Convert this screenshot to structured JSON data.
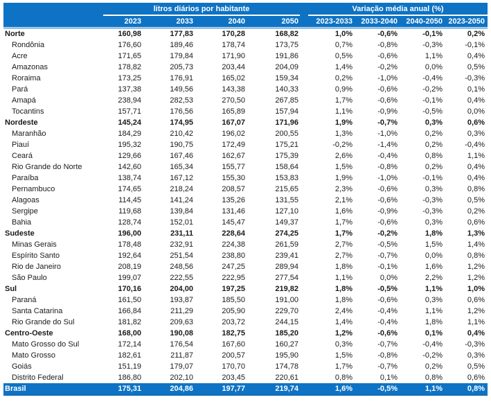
{
  "colors": {
    "accent_blue": "#0e73c4",
    "text": "#1a1a1a",
    "background": "#ffffff"
  },
  "table": {
    "group_headers": [
      "litros diários por habitante",
      "Variação média anual (%)"
    ],
    "columns_litros": [
      "2023",
      "2033",
      "2040",
      "2050"
    ],
    "columns_variacao": [
      "2023-2033",
      "2033-2040",
      "2040-2050",
      "2023-2050"
    ],
    "rows": [
      {
        "label": "Norte",
        "type": "region",
        "values": [
          "160,98",
          "177,83",
          "170,28",
          "168,82",
          "1,0%",
          "-0,6%",
          "-0,1%",
          "0,2%"
        ]
      },
      {
        "label": "Rondônia",
        "type": "state",
        "values": [
          "176,60",
          "189,46",
          "178,74",
          "173,75",
          "0,7%",
          "-0,8%",
          "-0,3%",
          "-0,1%"
        ]
      },
      {
        "label": "Acre",
        "type": "state",
        "values": [
          "171,65",
          "179,84",
          "171,90",
          "191,86",
          "0,5%",
          "-0,6%",
          "1,1%",
          "0,4%"
        ]
      },
      {
        "label": "Amazonas",
        "type": "state",
        "values": [
          "178,82",
          "205,73",
          "203,44",
          "204,09",
          "1,4%",
          "-0,2%",
          "0,0%",
          "0,5%"
        ]
      },
      {
        "label": "Roraima",
        "type": "state",
        "values": [
          "173,25",
          "176,91",
          "165,02",
          "159,34",
          "0,2%",
          "-1,0%",
          "-0,4%",
          "-0,3%"
        ]
      },
      {
        "label": "Pará",
        "type": "state",
        "values": [
          "137,38",
          "149,56",
          "143,38",
          "140,33",
          "0,9%",
          "-0,6%",
          "-0,2%",
          "0,1%"
        ]
      },
      {
        "label": "Amapá",
        "type": "state",
        "values": [
          "238,94",
          "282,53",
          "270,50",
          "267,85",
          "1,7%",
          "-0,6%",
          "-0,1%",
          "0,4%"
        ]
      },
      {
        "label": "Tocantins",
        "type": "state",
        "values": [
          "157,71",
          "176,56",
          "165,89",
          "157,94",
          "1,1%",
          "-0,9%",
          "-0,5%",
          "0,0%"
        ]
      },
      {
        "label": "Nordeste",
        "type": "region",
        "values": [
          "145,24",
          "174,95",
          "167,07",
          "171,96",
          "1,9%",
          "-0,7%",
          "0,3%",
          "0,6%"
        ]
      },
      {
        "label": "Maranhão",
        "type": "state",
        "values": [
          "184,29",
          "210,42",
          "196,02",
          "200,55",
          "1,3%",
          "-1,0%",
          "0,2%",
          "0,3%"
        ]
      },
      {
        "label": "Piauí",
        "type": "state",
        "values": [
          "195,32",
          "190,75",
          "172,49",
          "175,21",
          "-0,2%",
          "-1,4%",
          "0,2%",
          "-0,4%"
        ]
      },
      {
        "label": "Ceará",
        "type": "state",
        "values": [
          "129,66",
          "167,46",
          "162,67",
          "175,39",
          "2,6%",
          "-0,4%",
          "0,8%",
          "1,1%"
        ]
      },
      {
        "label": "Rio Grande do Norte",
        "type": "state",
        "values": [
          "142,60",
          "165,34",
          "155,77",
          "158,64",
          "1,5%",
          "-0,8%",
          "0,2%",
          "0,4%"
        ]
      },
      {
        "label": "Paraíba",
        "type": "state",
        "values": [
          "138,74",
          "167,12",
          "155,30",
          "153,83",
          "1,9%",
          "-1,0%",
          "-0,1%",
          "0,4%"
        ]
      },
      {
        "label": "Pernambuco",
        "type": "state",
        "values": [
          "174,65",
          "218,24",
          "208,57",
          "215,65",
          "2,3%",
          "-0,6%",
          "0,3%",
          "0,8%"
        ]
      },
      {
        "label": "Alagoas",
        "type": "state",
        "values": [
          "114,45",
          "141,24",
          "135,26",
          "131,55",
          "2,1%",
          "-0,6%",
          "-0,3%",
          "0,5%"
        ]
      },
      {
        "label": "Sergipe",
        "type": "state",
        "values": [
          "119,68",
          "139,84",
          "131,46",
          "127,10",
          "1,6%",
          "-0,9%",
          "-0,3%",
          "0,2%"
        ]
      },
      {
        "label": "Bahia",
        "type": "state",
        "values": [
          "128,74",
          "152,01",
          "145,47",
          "149,37",
          "1,7%",
          "-0,6%",
          "0,3%",
          "0,6%"
        ]
      },
      {
        "label": "Sudeste",
        "type": "region",
        "values": [
          "196,00",
          "231,11",
          "228,64",
          "274,25",
          "1,7%",
          "-0,2%",
          "1,8%",
          "1,3%"
        ]
      },
      {
        "label": "Minas Gerais",
        "type": "state",
        "values": [
          "178,48",
          "232,91",
          "224,38",
          "261,59",
          "2,7%",
          "-0,5%",
          "1,5%",
          "1,4%"
        ]
      },
      {
        "label": "Espírito Santo",
        "type": "state",
        "values": [
          "192,64",
          "251,54",
          "238,80",
          "239,41",
          "2,7%",
          "-0,7%",
          "0,0%",
          "0,8%"
        ]
      },
      {
        "label": "Rio de Janeiro",
        "type": "state",
        "values": [
          "208,19",
          "248,56",
          "247,25",
          "289,94",
          "1,8%",
          "-0,1%",
          "1,6%",
          "1,2%"
        ]
      },
      {
        "label": "São Paulo",
        "type": "state",
        "values": [
          "199,07",
          "222,55",
          "222,95",
          "277,54",
          "1,1%",
          "0,0%",
          "2,2%",
          "1,2%"
        ]
      },
      {
        "label": "Sul",
        "type": "region",
        "values": [
          "170,16",
          "204,00",
          "197,25",
          "219,82",
          "1,8%",
          "-0,5%",
          "1,1%",
          "1,0%"
        ]
      },
      {
        "label": "Paraná",
        "type": "state",
        "values": [
          "161,50",
          "193,87",
          "185,50",
          "191,00",
          "1,8%",
          "-0,6%",
          "0,3%",
          "0,6%"
        ]
      },
      {
        "label": "Santa Catarina",
        "type": "state",
        "values": [
          "166,84",
          "211,29",
          "205,90",
          "229,70",
          "2,4%",
          "-0,4%",
          "1,1%",
          "1,2%"
        ]
      },
      {
        "label": "Rio Grande do Sul",
        "type": "state",
        "values": [
          "181,82",
          "209,63",
          "203,72",
          "244,15",
          "1,4%",
          "-0,4%",
          "1,8%",
          "1,1%"
        ]
      },
      {
        "label": "Centro-Oeste",
        "type": "region",
        "values": [
          "168,00",
          "190,08",
          "182,75",
          "185,20",
          "1,2%",
          "-0,6%",
          "0,1%",
          "0,4%"
        ]
      },
      {
        "label": "Mato Grosso do Sul",
        "type": "state",
        "values": [
          "172,14",
          "176,54",
          "167,60",
          "160,27",
          "0,3%",
          "-0,7%",
          "-0,4%",
          "-0,3%"
        ]
      },
      {
        "label": "Mato Grosso",
        "type": "state",
        "values": [
          "182,61",
          "211,87",
          "200,57",
          "195,90",
          "1,5%",
          "-0,8%",
          "-0,2%",
          "0,3%"
        ]
      },
      {
        "label": "Goiás",
        "type": "state",
        "values": [
          "151,19",
          "179,07",
          "170,70",
          "174,78",
          "1,7%",
          "-0,7%",
          "0,2%",
          "0,5%"
        ]
      },
      {
        "label": "Distrito Federal",
        "type": "state",
        "values": [
          "186,80",
          "202,10",
          "203,45",
          "220,61",
          "0,8%",
          "0,1%",
          "0,8%",
          "0,6%"
        ]
      }
    ],
    "footer": {
      "label": "Brasil",
      "values": [
        "175,31",
        "204,86",
        "197,77",
        "219,74",
        "1,6%",
        "-0,5%",
        "1,1%",
        "0,8%"
      ]
    }
  }
}
